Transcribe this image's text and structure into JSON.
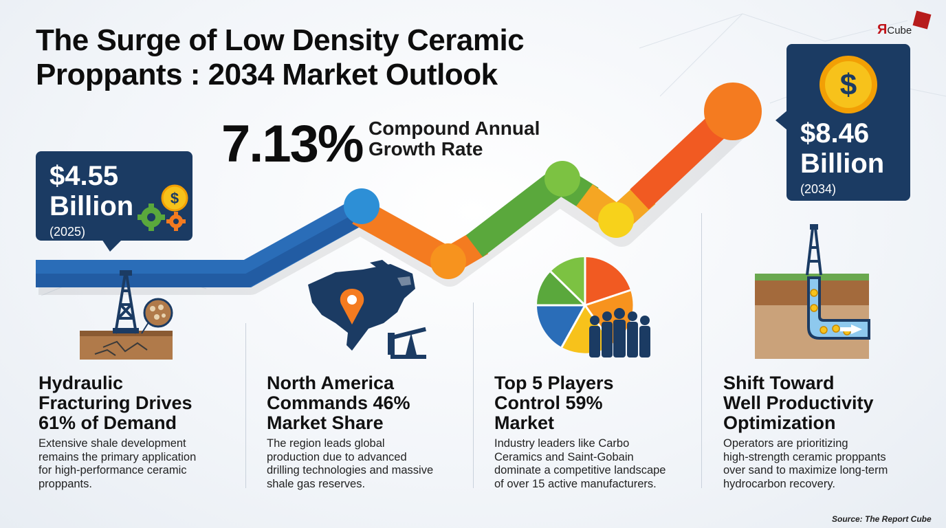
{
  "header": {
    "title_line1": "The Surge of Low Density Ceramic",
    "title_line2": "Proppants : 2034 Market Outlook"
  },
  "logo": {
    "letter": "Я",
    "text": "Cube"
  },
  "cagr": {
    "value": "7.13%",
    "label_line1": "Compound Annual",
    "label_line2": "Growth Rate"
  },
  "market_2025": {
    "value_line1": "$4.55",
    "value_line2": "Billion",
    "year": "(2025)"
  },
  "market_2034": {
    "value_line1": "$8.46",
    "value_line2": "Billion",
    "year": "(2034)"
  },
  "cards": [
    {
      "title_lines": [
        "Hydraulic",
        "Fracturing Drives",
        "61% of Demand"
      ],
      "text_lines": [
        "Extensive shale development",
        "remains the primary application",
        "for high-performance ceramic",
        "proppants."
      ]
    },
    {
      "title_lines": [
        "North America",
        "Commands 46%",
        "Market Share"
      ],
      "text_lines": [
        "The region leads global",
        "production due to advanced",
        "drilling technologies and massive",
        "shale gas reserves."
      ]
    },
    {
      "title_lines": [
        "Top 5 Players",
        "Control 59%",
        "Market"
      ],
      "text_lines": [
        "Industry leaders like Carbo",
        "Ceramics and Saint-Gobain",
        "dominate a competitive landscape",
        "of over 15 active manufacturers."
      ]
    },
    {
      "title_lines": [
        "Shift Toward",
        "Well Productivity",
        "Optimization"
      ],
      "text_lines": [
        "Operators are prioritizing",
        "high-strength ceramic proppants",
        "over sand to maximize long-term",
        "hydrocarbon recovery."
      ]
    }
  ],
  "source": "Source: The Report Cube",
  "colors": {
    "navy": "#1b3b63",
    "blue": "#2a6db8",
    "orange": "#f47b20",
    "green": "#5aa83c",
    "yellow": "#f7c21b",
    "red_orange": "#f15a22"
  }
}
